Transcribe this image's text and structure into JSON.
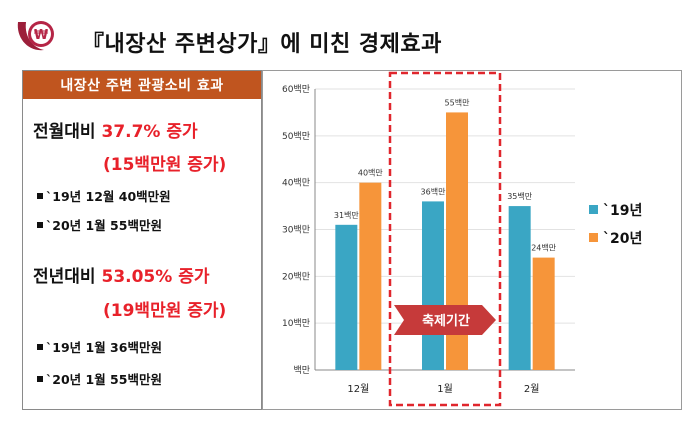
{
  "header": {
    "title": "『내장산 주변상가』에 미친 경제효과"
  },
  "left_panel": {
    "heading": "내장산 주변 관광소비 효과",
    "mom": {
      "label": "전월대비 ",
      "pct": "37.7% 증가",
      "sub": "(15백만원 증가)",
      "items": [
        "`19년 12월 40백만원",
        "`20년  1월 55백만원"
      ]
    },
    "yoy": {
      "label": "전년대비 ",
      "pct": "53.05% 증가",
      "sub": "(19백만원 증가)",
      "items": [
        "`19년 1월 36백만원",
        "`20년 1월 55백만원"
      ]
    }
  },
  "colors": {
    "accent": "#c0551f",
    "highlight_text": "#e8212a",
    "series_2019": "#3aa6c4",
    "series_2020": "#f6953a",
    "festival_box": "#e0262d"
  },
  "chart_data": {
    "type": "bar",
    "categories": [
      "12월",
      "1월",
      "2월"
    ],
    "series": [
      {
        "name": "`19년",
        "values": [
          31,
          36,
          35
        ],
        "labels": [
          "31백만",
          "36백만",
          "35백만"
        ]
      },
      {
        "name": "`20년",
        "values": [
          40,
          55,
          24
        ],
        "labels": [
          "40백만",
          "55백만",
          "24백만"
        ]
      }
    ],
    "ylim": [
      0,
      60
    ],
    "yticks": [
      0,
      10,
      20,
      30,
      40,
      50,
      60
    ],
    "ytick_labels": [
      "백만",
      "10백만",
      "20백만",
      "30백만",
      "40백만",
      "50백만",
      "60백만"
    ],
    "legend_position": "right",
    "annotation": {
      "text": "축제기간",
      "category": "1월"
    }
  }
}
